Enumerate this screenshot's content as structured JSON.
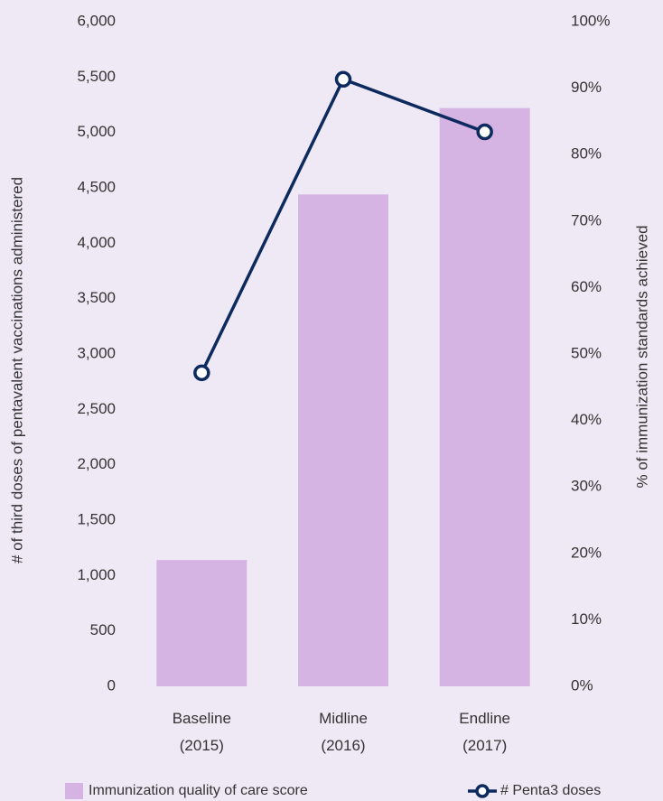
{
  "chart_data": {
    "type": "bar_line",
    "categories": [
      "Baseline (2015)",
      "Midline (2016)",
      "Endline (2017)"
    ],
    "series": [
      {
        "name": "Immunization quality of care score",
        "type": "bar",
        "axis": "y2",
        "color": "#d5b3e3",
        "values": [
          19,
          74,
          87
        ]
      },
      {
        "name": "# Penta3 doses",
        "type": "line",
        "axis": "y",
        "color": "#0d2a5e",
        "values": [
          2830,
          5480,
          5005
        ]
      }
    ],
    "ylabel": "# of third doses of pentavalent vaccinations administered",
    "y2label": "% of immunization standards achieved",
    "ylim": [
      0,
      6000
    ],
    "yticks": [
      0,
      500,
      {
        "value": 1000,
        "label": "1,000"
      },
      {
        "value": 1500,
        "label": "1,500"
      },
      {
        "value": 2000,
        "label": "2,000"
      },
      {
        "value": 2500,
        "label": "2,500"
      },
      {
        "value": 3000,
        "label": "3,000"
      },
      {
        "value": 3500,
        "label": "3,500"
      },
      {
        "value": 4000,
        "label": "4,000"
      },
      {
        "value": 4500,
        "label": "4,500"
      },
      {
        "value": 5000,
        "label": "5,000"
      },
      {
        "value": 5500,
        "label": "5,500"
      },
      {
        "value": 6000,
        "label": "6,000"
      }
    ],
    "y2lim": [
      0,
      100
    ],
    "y2ticks": [
      {
        "value": 0,
        "label": "0%"
      },
      {
        "value": 10,
        "label": "10%"
      },
      {
        "value": 20,
        "label": "20%"
      },
      {
        "value": 30,
        "label": "30%"
      },
      {
        "value": 40,
        "label": "40%"
      },
      {
        "value": 50,
        "label": "50%"
      },
      {
        "value": 60,
        "label": "60%"
      },
      {
        "value": 70,
        "label": "70%"
      },
      {
        "value": 80,
        "label": "80%"
      },
      {
        "value": 90,
        "label": "90%"
      },
      {
        "value": 100,
        "label": "100%"
      }
    ],
    "grid": false,
    "legend": "bottom"
  }
}
